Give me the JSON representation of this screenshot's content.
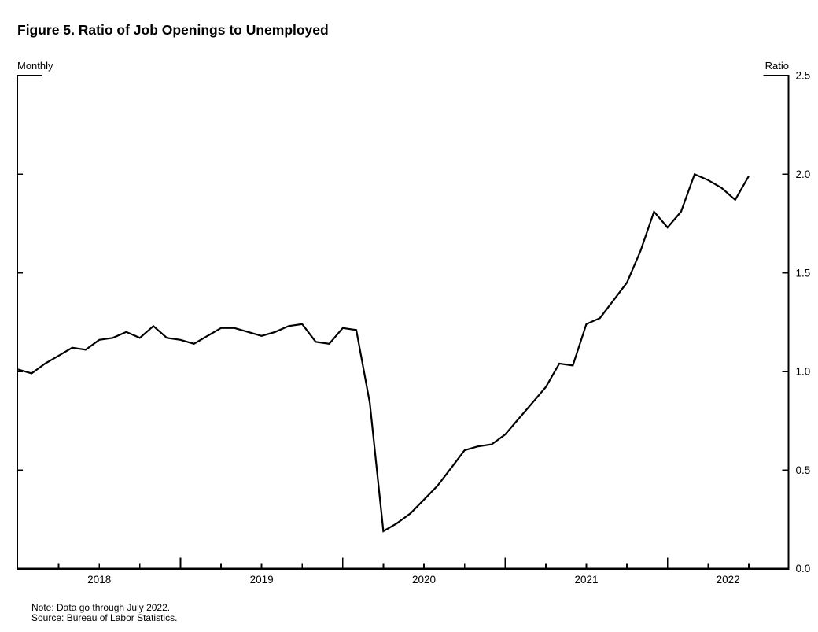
{
  "title": "Figure 5. Ratio of Job Openings to Unemployed",
  "frequency_label": "Monthly",
  "unit_label": "Ratio",
  "note": "Note: Data go through July 2022.",
  "source": "Source: Bureau of Labor Statistics.",
  "chart_data": {
    "type": "line",
    "title": "Figure 5. Ratio of Job Openings to Unemployed",
    "xlabel": "",
    "ylabel": "Ratio",
    "frequency": "Monthly",
    "x_start_month": "2018-01",
    "x_end_month": "2022-07",
    "x_axis_end_month": "2022-10",
    "ylim": [
      0.0,
      2.5
    ],
    "y_ticks": [
      0.0,
      0.5,
      1.0,
      1.5,
      2.0,
      2.5
    ],
    "y_tick_labels": [
      "0.0",
      "0.5",
      "1.0",
      "1.5",
      "2.0",
      "2.5"
    ],
    "x_tick_years": [
      "2018",
      "2019",
      "2020",
      "2021",
      "2022"
    ],
    "grid": false,
    "legend_position": "none",
    "line_color": "#000000",
    "series": [
      {
        "name": "Ratio of job openings to unemployed",
        "values": [
          1.01,
          0.99,
          1.04,
          1.08,
          1.12,
          1.11,
          1.16,
          1.17,
          1.2,
          1.17,
          1.23,
          1.17,
          1.16,
          1.14,
          1.18,
          1.22,
          1.22,
          1.2,
          1.18,
          1.2,
          1.23,
          1.24,
          1.15,
          1.14,
          1.22,
          1.21,
          0.84,
          0.19,
          0.23,
          0.28,
          0.35,
          0.42,
          0.51,
          0.6,
          0.62,
          0.63,
          0.68,
          0.76,
          0.84,
          0.92,
          1.04,
          1.03,
          1.24,
          1.27,
          1.36,
          1.45,
          1.61,
          1.81,
          1.73,
          1.81,
          2.0,
          1.97,
          1.93,
          1.87,
          1.99
        ]
      }
    ]
  }
}
